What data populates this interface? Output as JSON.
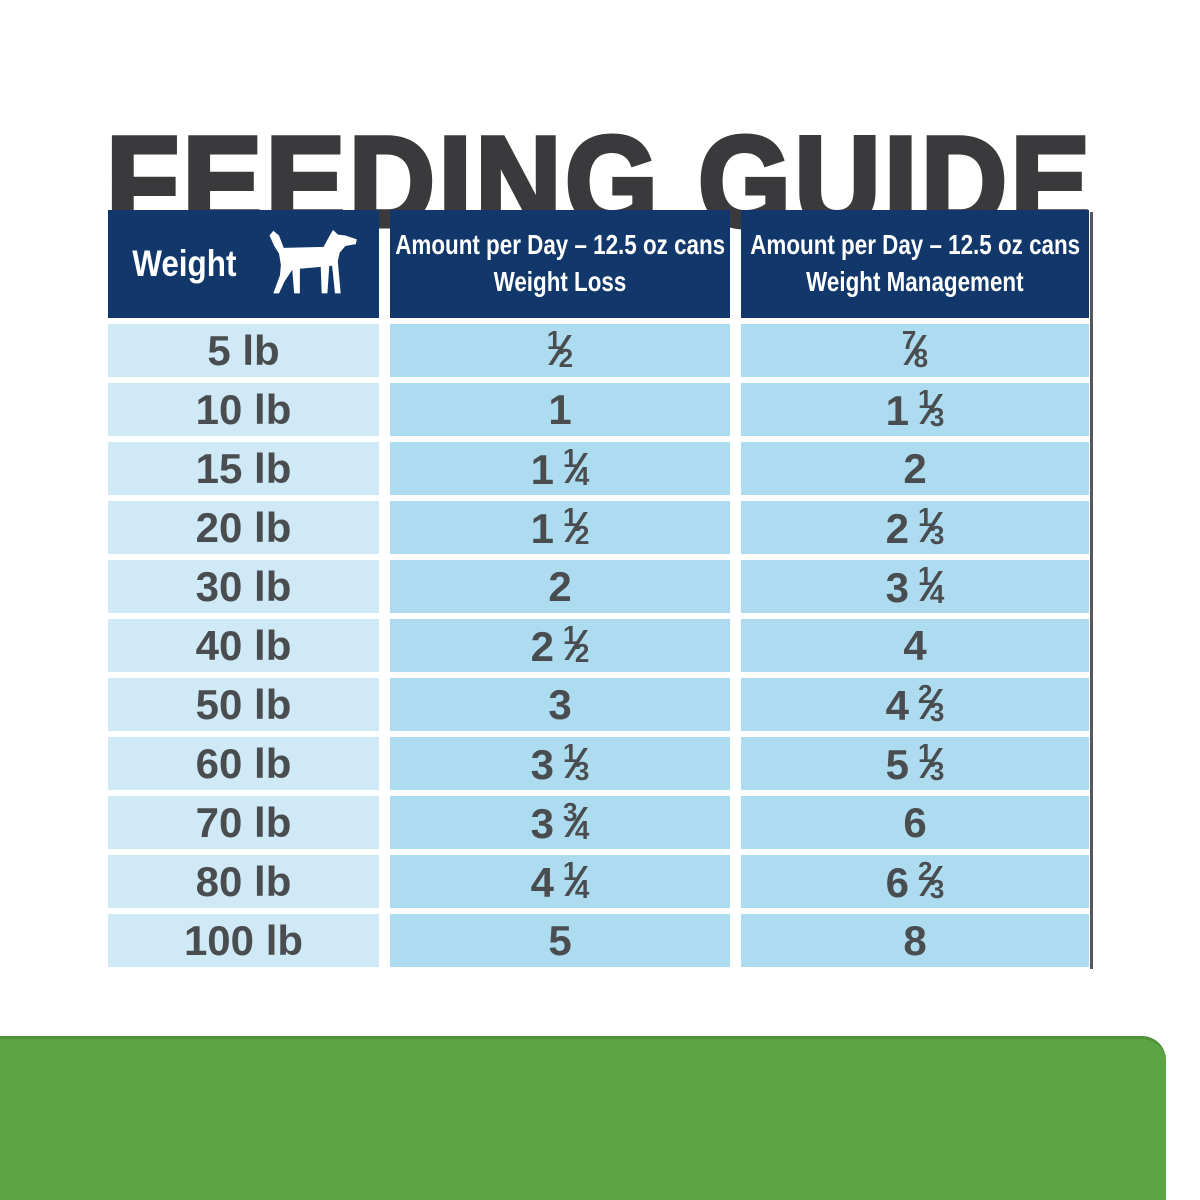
{
  "title": "FEEDING GUIDE",
  "table": {
    "headers": {
      "weight_label": "Weight",
      "weight_icon": "dog-icon",
      "loss_line1": "Amount per Day – 12.5 oz cans",
      "loss_line2": "Weight Loss",
      "mgmt_line1": "Amount per Day – 12.5 oz cans",
      "mgmt_line2": "Weight Management"
    }
  },
  "chart_data": {
    "type": "table",
    "title": "FEEDING GUIDE",
    "columns": [
      "Weight",
      "Amount per Day – 12.5 oz cans Weight Loss",
      "Amount per Day – 12.5 oz cans Weight Management"
    ],
    "rows": [
      [
        "5 lb",
        "1/2",
        "7/8"
      ],
      [
        "10 lb",
        "1",
        "1 1/3"
      ],
      [
        "15 lb",
        "1 1/4",
        "2"
      ],
      [
        "20 lb",
        "1 1/2",
        "2 1/3"
      ],
      [
        "30 lb",
        "2",
        "3 1/4"
      ],
      [
        "40 lb",
        "2 1/2",
        "4"
      ],
      [
        "50 lb",
        "3",
        "4 2/3"
      ],
      [
        "60 lb",
        "3 1/3",
        "5 1/3"
      ],
      [
        "70 lb",
        "3 3/4",
        "6"
      ],
      [
        "80 lb",
        "4 1/4",
        "6 2/3"
      ],
      [
        "100 lb",
        "5",
        "8"
      ]
    ]
  },
  "colors": {
    "navy": "#12386b",
    "cell_light": "#cfe9f6",
    "cell_medium": "#addcf0",
    "green": "#5ba544",
    "title_color": "#3a3a3c",
    "body_text": "#4a4d50",
    "header_text": "#ffffff",
    "table_edge": "#373c42"
  }
}
